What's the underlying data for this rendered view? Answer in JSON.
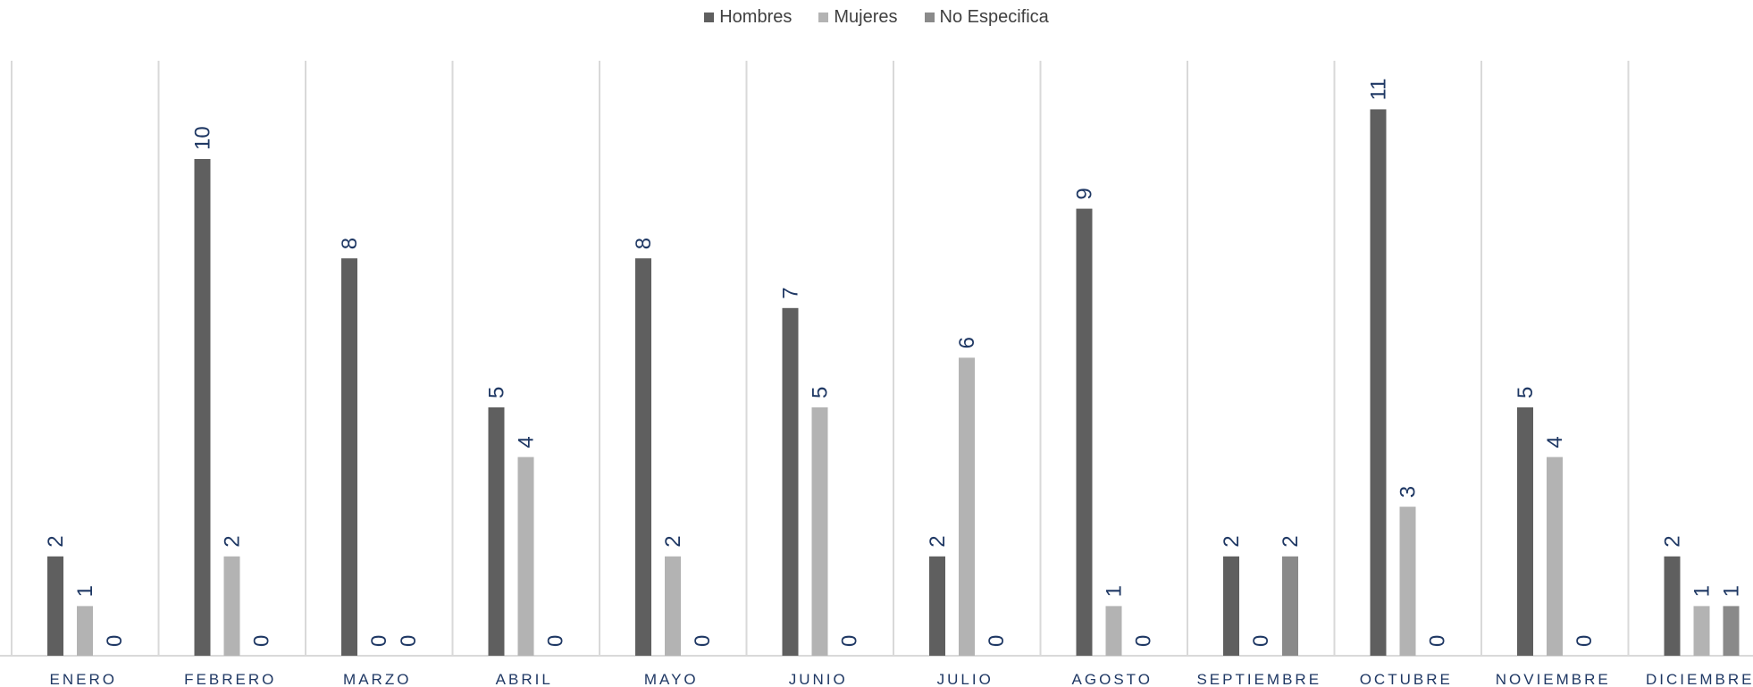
{
  "chart_data": {
    "type": "bar",
    "categories": [
      "ENERO",
      "FEBRERO",
      "MARZO",
      "ABRIL",
      "MAYO",
      "JUNIO",
      "JULIO",
      "AGOSTO",
      "SEPTIEMBRE",
      "OCTUBRE",
      "NOVIEMBRE",
      "DICIEMBRE"
    ],
    "series": [
      {
        "name": "Hombres",
        "color": "#5f5f5f",
        "values": [
          2,
          10,
          8,
          5,
          8,
          7,
          2,
          9,
          2,
          11,
          5,
          2
        ]
      },
      {
        "name": "Mujeres",
        "color": "#b3b3b3",
        "values": [
          1,
          2,
          0,
          4,
          2,
          5,
          6,
          1,
          0,
          3,
          4,
          1
        ]
      },
      {
        "name": "No Especifica",
        "color": "#8a8a8a",
        "values": [
          0,
          0,
          0,
          0,
          0,
          0,
          0,
          0,
          2,
          0,
          0,
          1
        ]
      }
    ],
    "ylim": [
      0,
      12
    ],
    "grid": false,
    "legend_position": "top-center",
    "data_labels": true,
    "label_color": "#1f3864",
    "separator_color": "#d9d9d9"
  }
}
